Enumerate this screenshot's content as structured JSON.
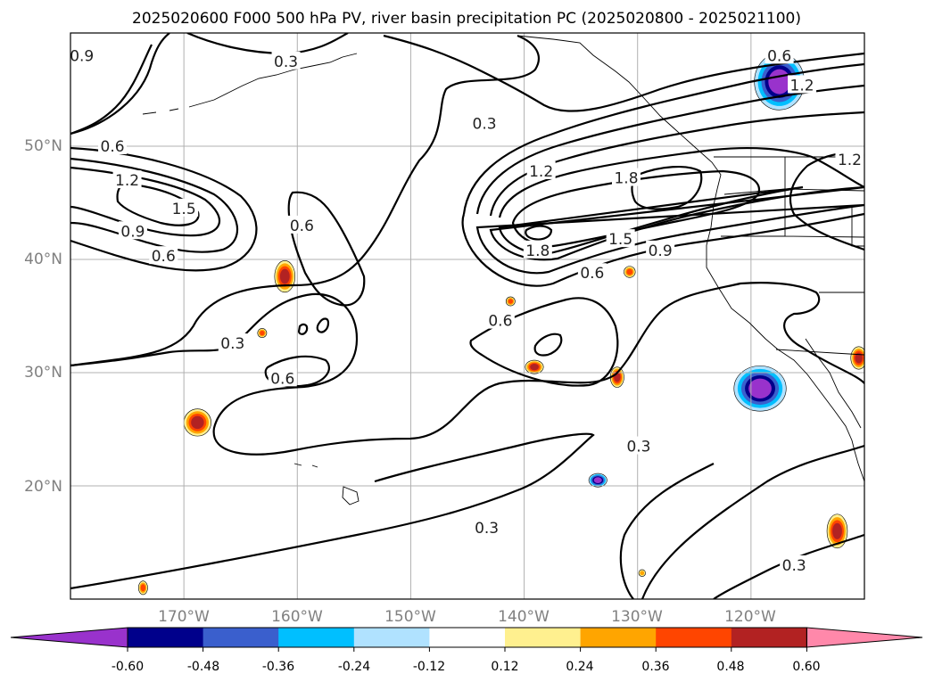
{
  "chart_data": {
    "type": "contour-map",
    "title": "2025020600 F000 500 hPa PV, river basin precipitation PC (2025020800 - 2025021100)",
    "lon_range": [
      -180,
      -110
    ],
    "lat_range": [
      10,
      60
    ],
    "x_ticks": [
      "170°W",
      "160°W",
      "150°W",
      "140°W",
      "130°W",
      "120°W"
    ],
    "x_tick_values": [
      -170,
      -160,
      -150,
      -140,
      -130,
      -120
    ],
    "y_ticks": [
      "50°N",
      "40°N",
      "30°N",
      "20°N"
    ],
    "y_tick_values": [
      50,
      40,
      30,
      20
    ],
    "grid": true,
    "colorbar": {
      "ticks": [
        "-0.60",
        "-0.48",
        "-0.36",
        "-0.24",
        "-0.12",
        "0.12",
        "0.24",
        "0.36",
        "0.48",
        "0.60"
      ],
      "levels": [
        -0.6,
        -0.48,
        -0.36,
        -0.24,
        -0.12,
        0.12,
        0.24,
        0.36,
        0.48,
        0.6
      ],
      "colors": [
        "#9932cc",
        "#00008b",
        "#3a5fcd",
        "#00bfff",
        "#b0e2ff",
        "#ffffff",
        "#fff08f",
        "#ffa500",
        "#ff4500",
        "#b22222",
        "#ff88aa"
      ],
      "extend": "both"
    },
    "pv_contour_levels": [
      0.3,
      0.6,
      0.9,
      1.2,
      1.5,
      1.8
    ],
    "contour_labels": [
      {
        "text": "0.9",
        "lon": -179,
        "lat": 58
      },
      {
        "text": "0.3",
        "lon": -161,
        "lat": 57.5
      },
      {
        "text": "0.6",
        "lon": -117.5,
        "lat": 58
      },
      {
        "text": "0.6",
        "lon": -176.3,
        "lat": 50
      },
      {
        "text": "1.2",
        "lon": -175,
        "lat": 47
      },
      {
        "text": "1.5",
        "lon": -170,
        "lat": 44.5
      },
      {
        "text": "0.9",
        "lon": -174.5,
        "lat": 42.5
      },
      {
        "text": "0.6",
        "lon": -171.8,
        "lat": 40.3
      },
      {
        "text": "0.6",
        "lon": -159.6,
        "lat": 43
      },
      {
        "text": "0.3",
        "lon": -143.5,
        "lat": 52
      },
      {
        "text": "1.2",
        "lon": -138.5,
        "lat": 47.8
      },
      {
        "text": "1.8",
        "lon": -131,
        "lat": 47.2
      },
      {
        "text": "1.5",
        "lon": -131.5,
        "lat": 41.8
      },
      {
        "text": "1.8",
        "lon": -138.8,
        "lat": 40.8
      },
      {
        "text": "0.9",
        "lon": -128,
        "lat": 40.8
      },
      {
        "text": "0.6",
        "lon": -134,
        "lat": 38.8
      },
      {
        "text": "1.2",
        "lon": -115.5,
        "lat": 55.4
      },
      {
        "text": "1.2",
        "lon": -111.3,
        "lat": 48.8
      },
      {
        "text": "0.6",
        "lon": -142.1,
        "lat": 34.6
      },
      {
        "text": "0.3",
        "lon": -165.7,
        "lat": 32.6
      },
      {
        "text": "0.6",
        "lon": -161.3,
        "lat": 29.5
      },
      {
        "text": "0.3",
        "lon": -129.9,
        "lat": 23.5
      },
      {
        "text": "0.3",
        "lon": -143.3,
        "lat": 16.3
      },
      {
        "text": "0.3",
        "lon": -116.2,
        "lat": 13
      }
    ],
    "precip_pc_patches": [
      {
        "lon": -117.5,
        "lat": 55.7,
        "rx": 2.2,
        "ry": 2.5,
        "value": -0.6
      },
      {
        "lon": -119.2,
        "lat": 28.6,
        "rx": 2.3,
        "ry": 2.0,
        "value": -0.6
      },
      {
        "lon": -133.5,
        "lat": 20.5,
        "rx": 0.8,
        "ry": 0.6,
        "value": -0.6
      },
      {
        "lon": -168.8,
        "lat": 25.6,
        "rx": 1.2,
        "ry": 1.2,
        "value": 0.48
      },
      {
        "lon": -161.1,
        "lat": 38.5,
        "rx": 0.9,
        "ry": 1.4,
        "value": 0.48
      },
      {
        "lon": -112.4,
        "lat": 16,
        "rx": 0.9,
        "ry": 1.5,
        "value": 0.48
      },
      {
        "lon": -110.5,
        "lat": 31.3,
        "rx": 0.7,
        "ry": 1.0,
        "value": 0.48
      },
      {
        "lon": -139.1,
        "lat": 30.5,
        "rx": 0.8,
        "ry": 0.6,
        "value": 0.48
      },
      {
        "lon": -131.8,
        "lat": 29.6,
        "rx": 0.6,
        "ry": 0.9,
        "value": 0.48
      },
      {
        "lon": -130.7,
        "lat": 38.9,
        "rx": 0.5,
        "ry": 0.5,
        "value": 0.36
      },
      {
        "lon": -163.1,
        "lat": 33.5,
        "rx": 0.4,
        "ry": 0.4,
        "value": 0.36
      },
      {
        "lon": -173.6,
        "lat": 11,
        "rx": 0.4,
        "ry": 0.6,
        "value": 0.36
      },
      {
        "lon": -141.2,
        "lat": 36.3,
        "rx": 0.4,
        "ry": 0.4,
        "value": 0.36
      },
      {
        "lon": -129.6,
        "lat": 12.3,
        "rx": 0.3,
        "ry": 0.3,
        "value": 0.24
      }
    ]
  }
}
